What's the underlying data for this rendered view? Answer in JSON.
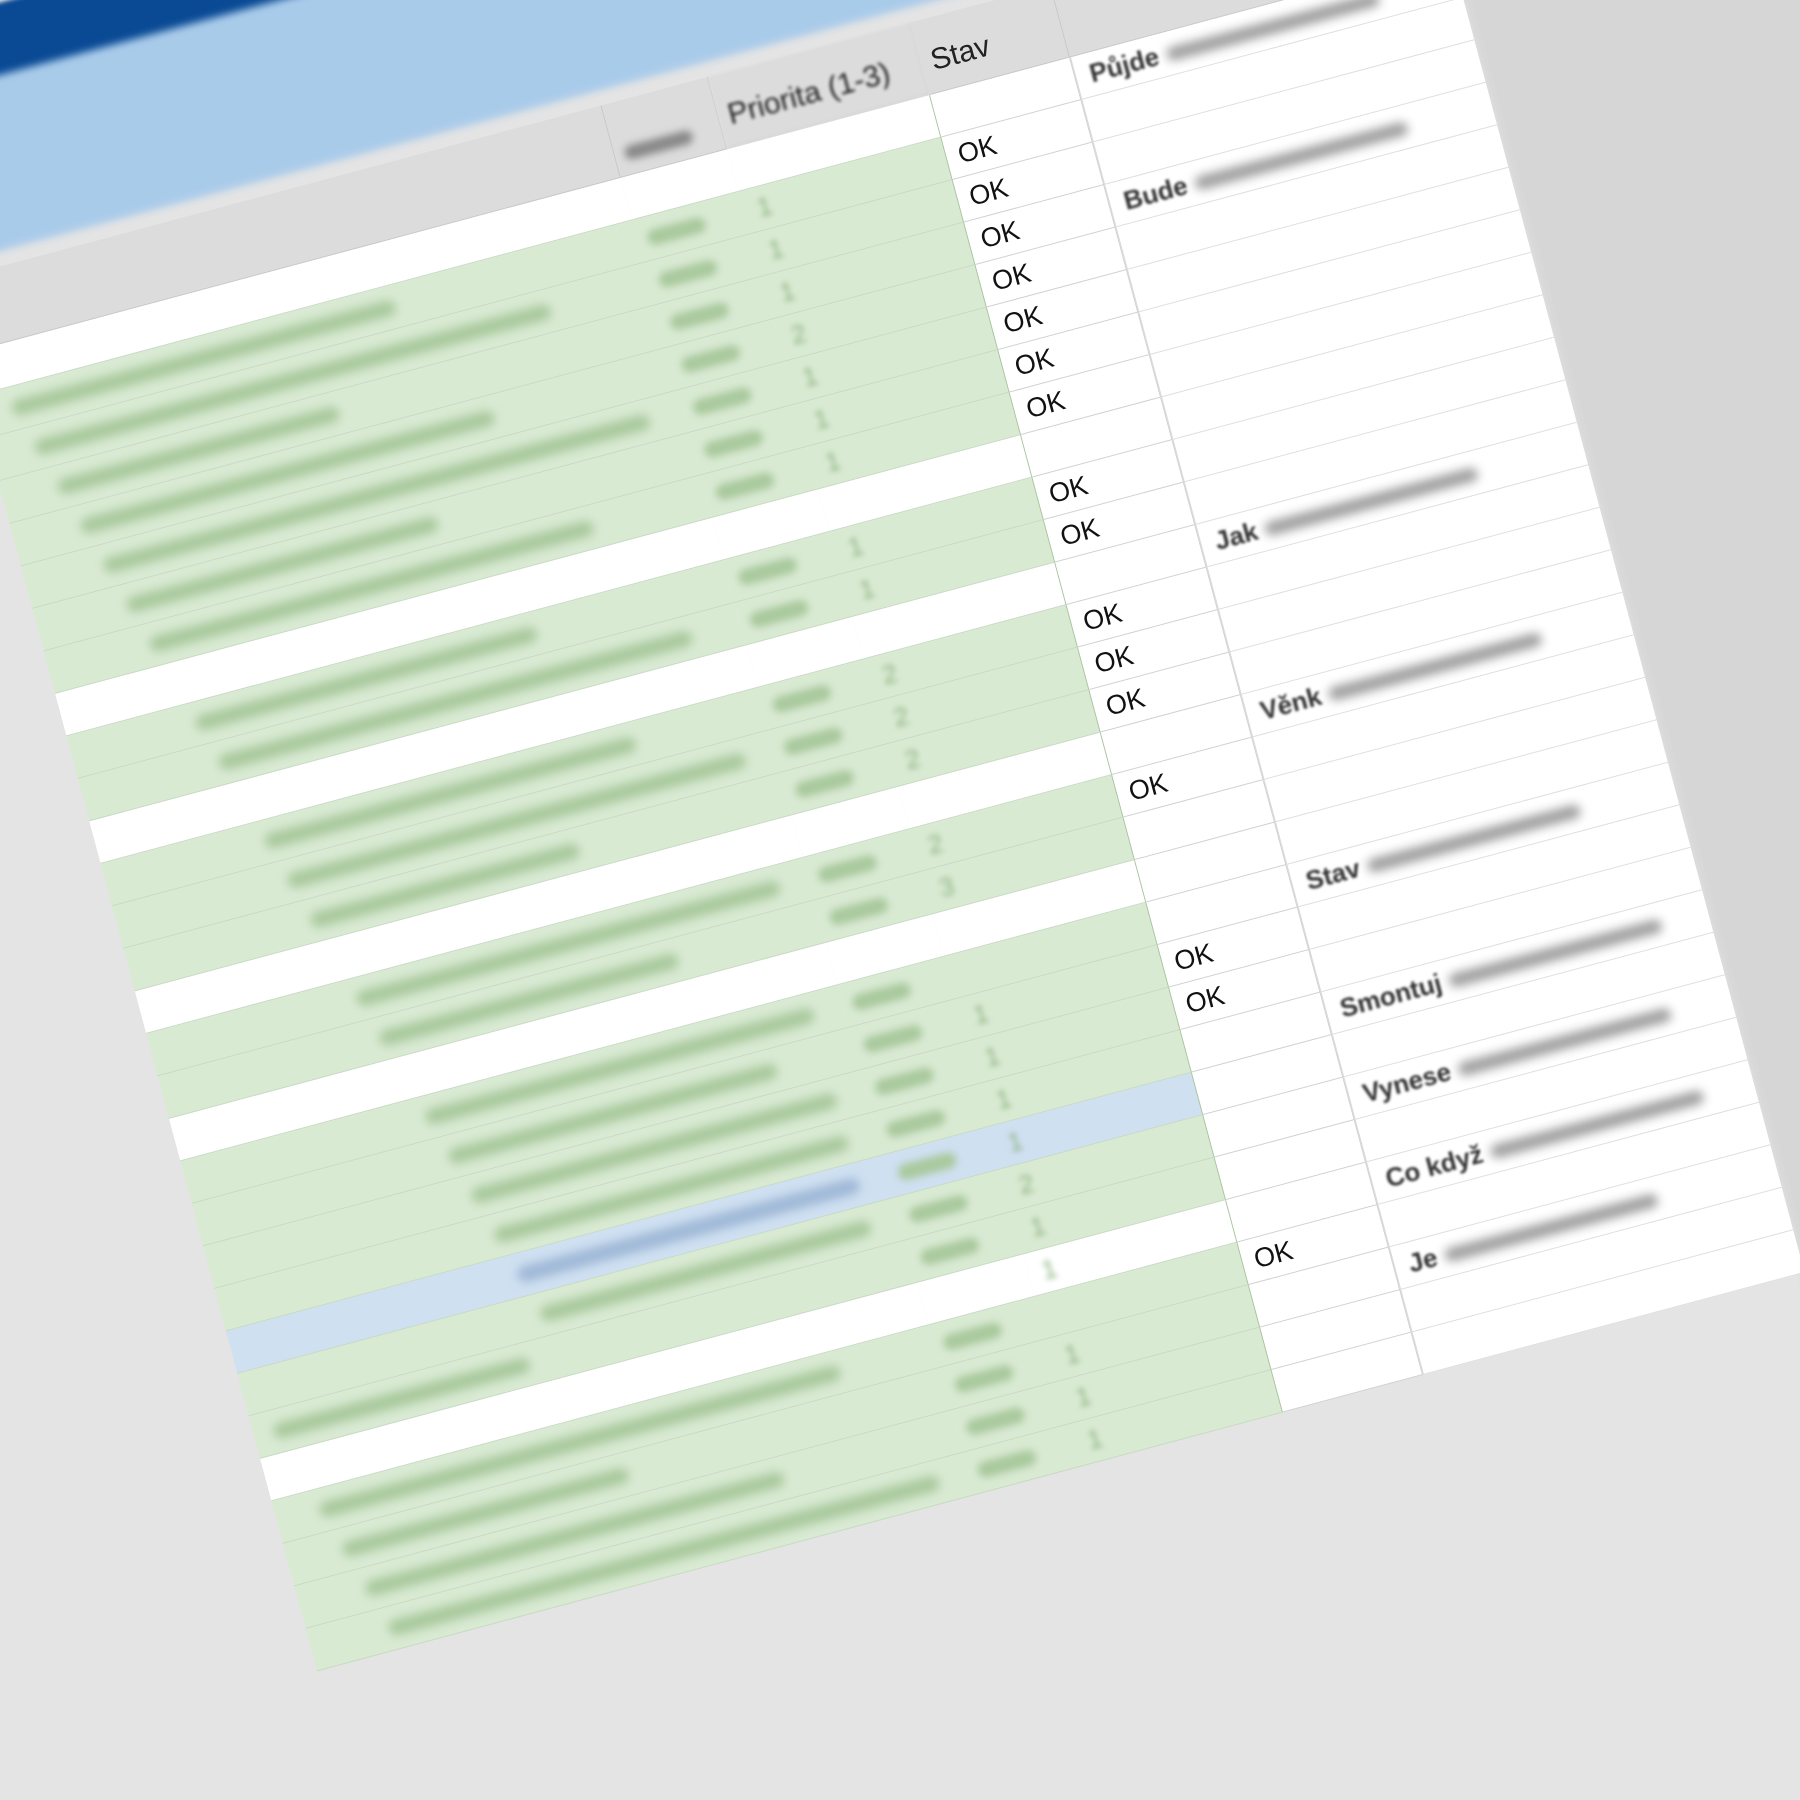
{
  "headers": {
    "priority": "Priorita (1-3)",
    "stav": "Stav"
  },
  "colors": {
    "done_fill": "#d9ead3",
    "highlight_fill": "#cfe0f1",
    "header_blue": "#0a4a95",
    "ribbon_light": "#a9cbea"
  },
  "rows": [
    {
      "fill": "w",
      "stav": "",
      "note": "Půjde",
      "prio": ""
    },
    {
      "fill": "g",
      "stav": "OK",
      "note": "",
      "prio": "1"
    },
    {
      "fill": "g",
      "stav": "OK",
      "note": "",
      "prio": "1"
    },
    {
      "fill": "g",
      "stav": "OK",
      "note": "Bude",
      "prio": "1"
    },
    {
      "fill": "g",
      "stav": "OK",
      "note": "",
      "prio": "2"
    },
    {
      "fill": "g",
      "stav": "OK",
      "note": "",
      "prio": "1"
    },
    {
      "fill": "g",
      "stav": "OK",
      "note": "",
      "prio": "1"
    },
    {
      "fill": "g",
      "stav": "OK",
      "note": "",
      "prio": "1"
    },
    {
      "fill": "w",
      "stav": "",
      "note": "",
      "prio": ""
    },
    {
      "fill": "g",
      "stav": "OK",
      "note": "",
      "prio": "1"
    },
    {
      "fill": "g",
      "stav": "OK",
      "note": "",
      "prio": "1"
    },
    {
      "fill": "w",
      "stav": "",
      "note": "Jak",
      "prio": ""
    },
    {
      "fill": "g",
      "stav": "OK",
      "note": "",
      "prio": "2"
    },
    {
      "fill": "g",
      "stav": "OK",
      "note": "",
      "prio": "2"
    },
    {
      "fill": "g",
      "stav": "OK",
      "note": "",
      "prio": "2"
    },
    {
      "fill": "w",
      "stav": "",
      "note": "Věnk",
      "prio": ""
    },
    {
      "fill": "g",
      "stav": "OK",
      "note": "",
      "prio": "2"
    },
    {
      "fill": "g",
      "stav": "",
      "note": "",
      "prio": "3"
    },
    {
      "fill": "w",
      "stav": "",
      "note": "",
      "prio": ""
    },
    {
      "fill": "g",
      "stav": "",
      "note": "Stav",
      "prio": ""
    },
    {
      "fill": "g",
      "stav": "OK",
      "note": "",
      "prio": "1"
    },
    {
      "fill": "g",
      "stav": "OK",
      "note": "",
      "prio": "1"
    },
    {
      "fill": "g",
      "stav": "",
      "note": "Smontuj",
      "prio": "1"
    },
    {
      "fill": "b",
      "stav": "",
      "note": "",
      "prio": "1"
    },
    {
      "fill": "g",
      "stav": "",
      "note": "Vynese",
      "prio": "2"
    },
    {
      "fill": "g",
      "stav": "",
      "note": "",
      "prio": "1"
    },
    {
      "fill": "w",
      "stav": "",
      "note": "Co když",
      "prio": "1"
    },
    {
      "fill": "g",
      "stav": "OK",
      "note": "",
      "prio": ""
    },
    {
      "fill": "g",
      "stav": "",
      "note": "Je",
      "prio": "1"
    },
    {
      "fill": "g",
      "stav": "",
      "note": "",
      "prio": "1"
    },
    {
      "fill": "g",
      "stav": "",
      "note": "",
      "prio": "1"
    }
  ]
}
